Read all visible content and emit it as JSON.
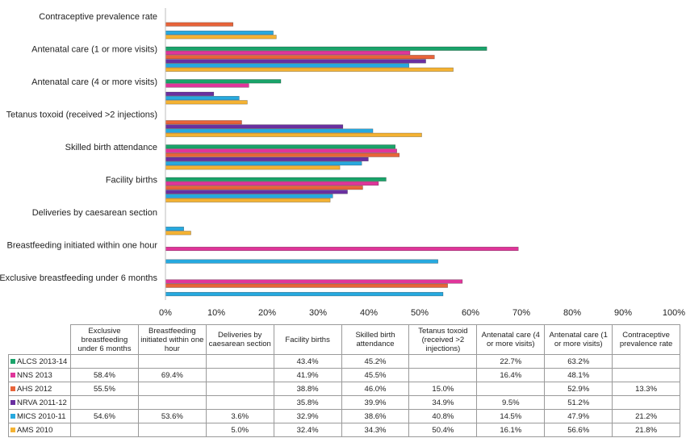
{
  "chart_data": {
    "type": "bar",
    "orientation": "horizontal",
    "categories": [
      "Contraceptive prevalence rate",
      "Antenatal care (1 or more visits)",
      "Antenatal care (4 or more visits)",
      "Tetanus toxoid (received >2 injections)",
      "Skilled birth attendance",
      "Facility births",
      "Deliveries by caesarean section",
      "Breastfeeding initiated within one hour",
      "Exclusive breastfeeding under 6 months"
    ],
    "series": [
      {
        "name": "ALCS 2013-14",
        "color": "#1aa36a",
        "values": [
          null,
          63.2,
          22.7,
          null,
          45.2,
          43.4,
          null,
          null,
          null
        ]
      },
      {
        "name": "NNS 2013",
        "color": "#e0359a",
        "values": [
          null,
          48.1,
          16.4,
          null,
          45.5,
          41.9,
          null,
          69.4,
          58.4
        ]
      },
      {
        "name": "AHS 2012",
        "color": "#e8643a",
        "values": [
          13.3,
          52.9,
          null,
          15.0,
          46.0,
          38.8,
          null,
          null,
          55.5
        ]
      },
      {
        "name": "NRVA 2011-12",
        "color": "#6a2fa0",
        "values": [
          null,
          51.2,
          9.5,
          34.9,
          39.9,
          35.8,
          null,
          null,
          null
        ]
      },
      {
        "name": "MICS 2010-11",
        "color": "#27a9df",
        "values": [
          21.2,
          47.9,
          14.5,
          40.8,
          38.6,
          32.9,
          3.6,
          53.6,
          54.6
        ]
      },
      {
        "name": "AMS 2010",
        "color": "#f4b233",
        "values": [
          21.8,
          56.6,
          16.1,
          50.4,
          34.3,
          32.4,
          5.0,
          null,
          null
        ]
      }
    ],
    "xlim": [
      0,
      100
    ],
    "x_ticks": [
      "0%",
      "10%",
      "20%",
      "30%",
      "40%",
      "50%",
      "60%",
      "70%",
      "80%",
      "90%",
      "100%"
    ],
    "grid": false,
    "legend": "data table below the chart"
  },
  "table": {
    "headers": [
      "Exclusive breastfeeding under 6 months",
      "Breastfeeding initiated within one hour",
      "Deliveries by caesarean section",
      "Facility births",
      "Skilled birth attendance",
      "Tetanus toxoid (received >2 injections)",
      "Antenatal care (4 or more visits)",
      "Antenatal care (1 or more visits)",
      "Contraceptive prevalence rate"
    ],
    "rows": [
      {
        "series": "ALCS 2013-14",
        "cells": [
          "",
          "",
          "",
          "43.4%",
          "45.2%",
          "",
          "22.7%",
          "63.2%",
          ""
        ]
      },
      {
        "series": "NNS 2013",
        "cells": [
          "58.4%",
          "69.4%",
          "",
          "41.9%",
          "45.5%",
          "",
          "16.4%",
          "48.1%",
          ""
        ]
      },
      {
        "series": "AHS 2012",
        "cells": [
          "55.5%",
          "",
          "",
          "38.8%",
          "46.0%",
          "15.0%",
          "",
          "52.9%",
          "13.3%"
        ]
      },
      {
        "series": "NRVA 2011-12",
        "cells": [
          "",
          "",
          "",
          "35.8%",
          "39.9%",
          "34.9%",
          "9.5%",
          "51.2%",
          ""
        ]
      },
      {
        "series": "MICS 2010-11",
        "cells": [
          "54.6%",
          "53.6%",
          "3.6%",
          "32.9%",
          "38.6%",
          "40.8%",
          "14.5%",
          "47.9%",
          "21.2%"
        ]
      },
      {
        "series": "AMS 2010",
        "cells": [
          "",
          "",
          "5.0%",
          "32.4%",
          "34.3%",
          "50.4%",
          "16.1%",
          "56.6%",
          "21.8%"
        ]
      }
    ]
  }
}
